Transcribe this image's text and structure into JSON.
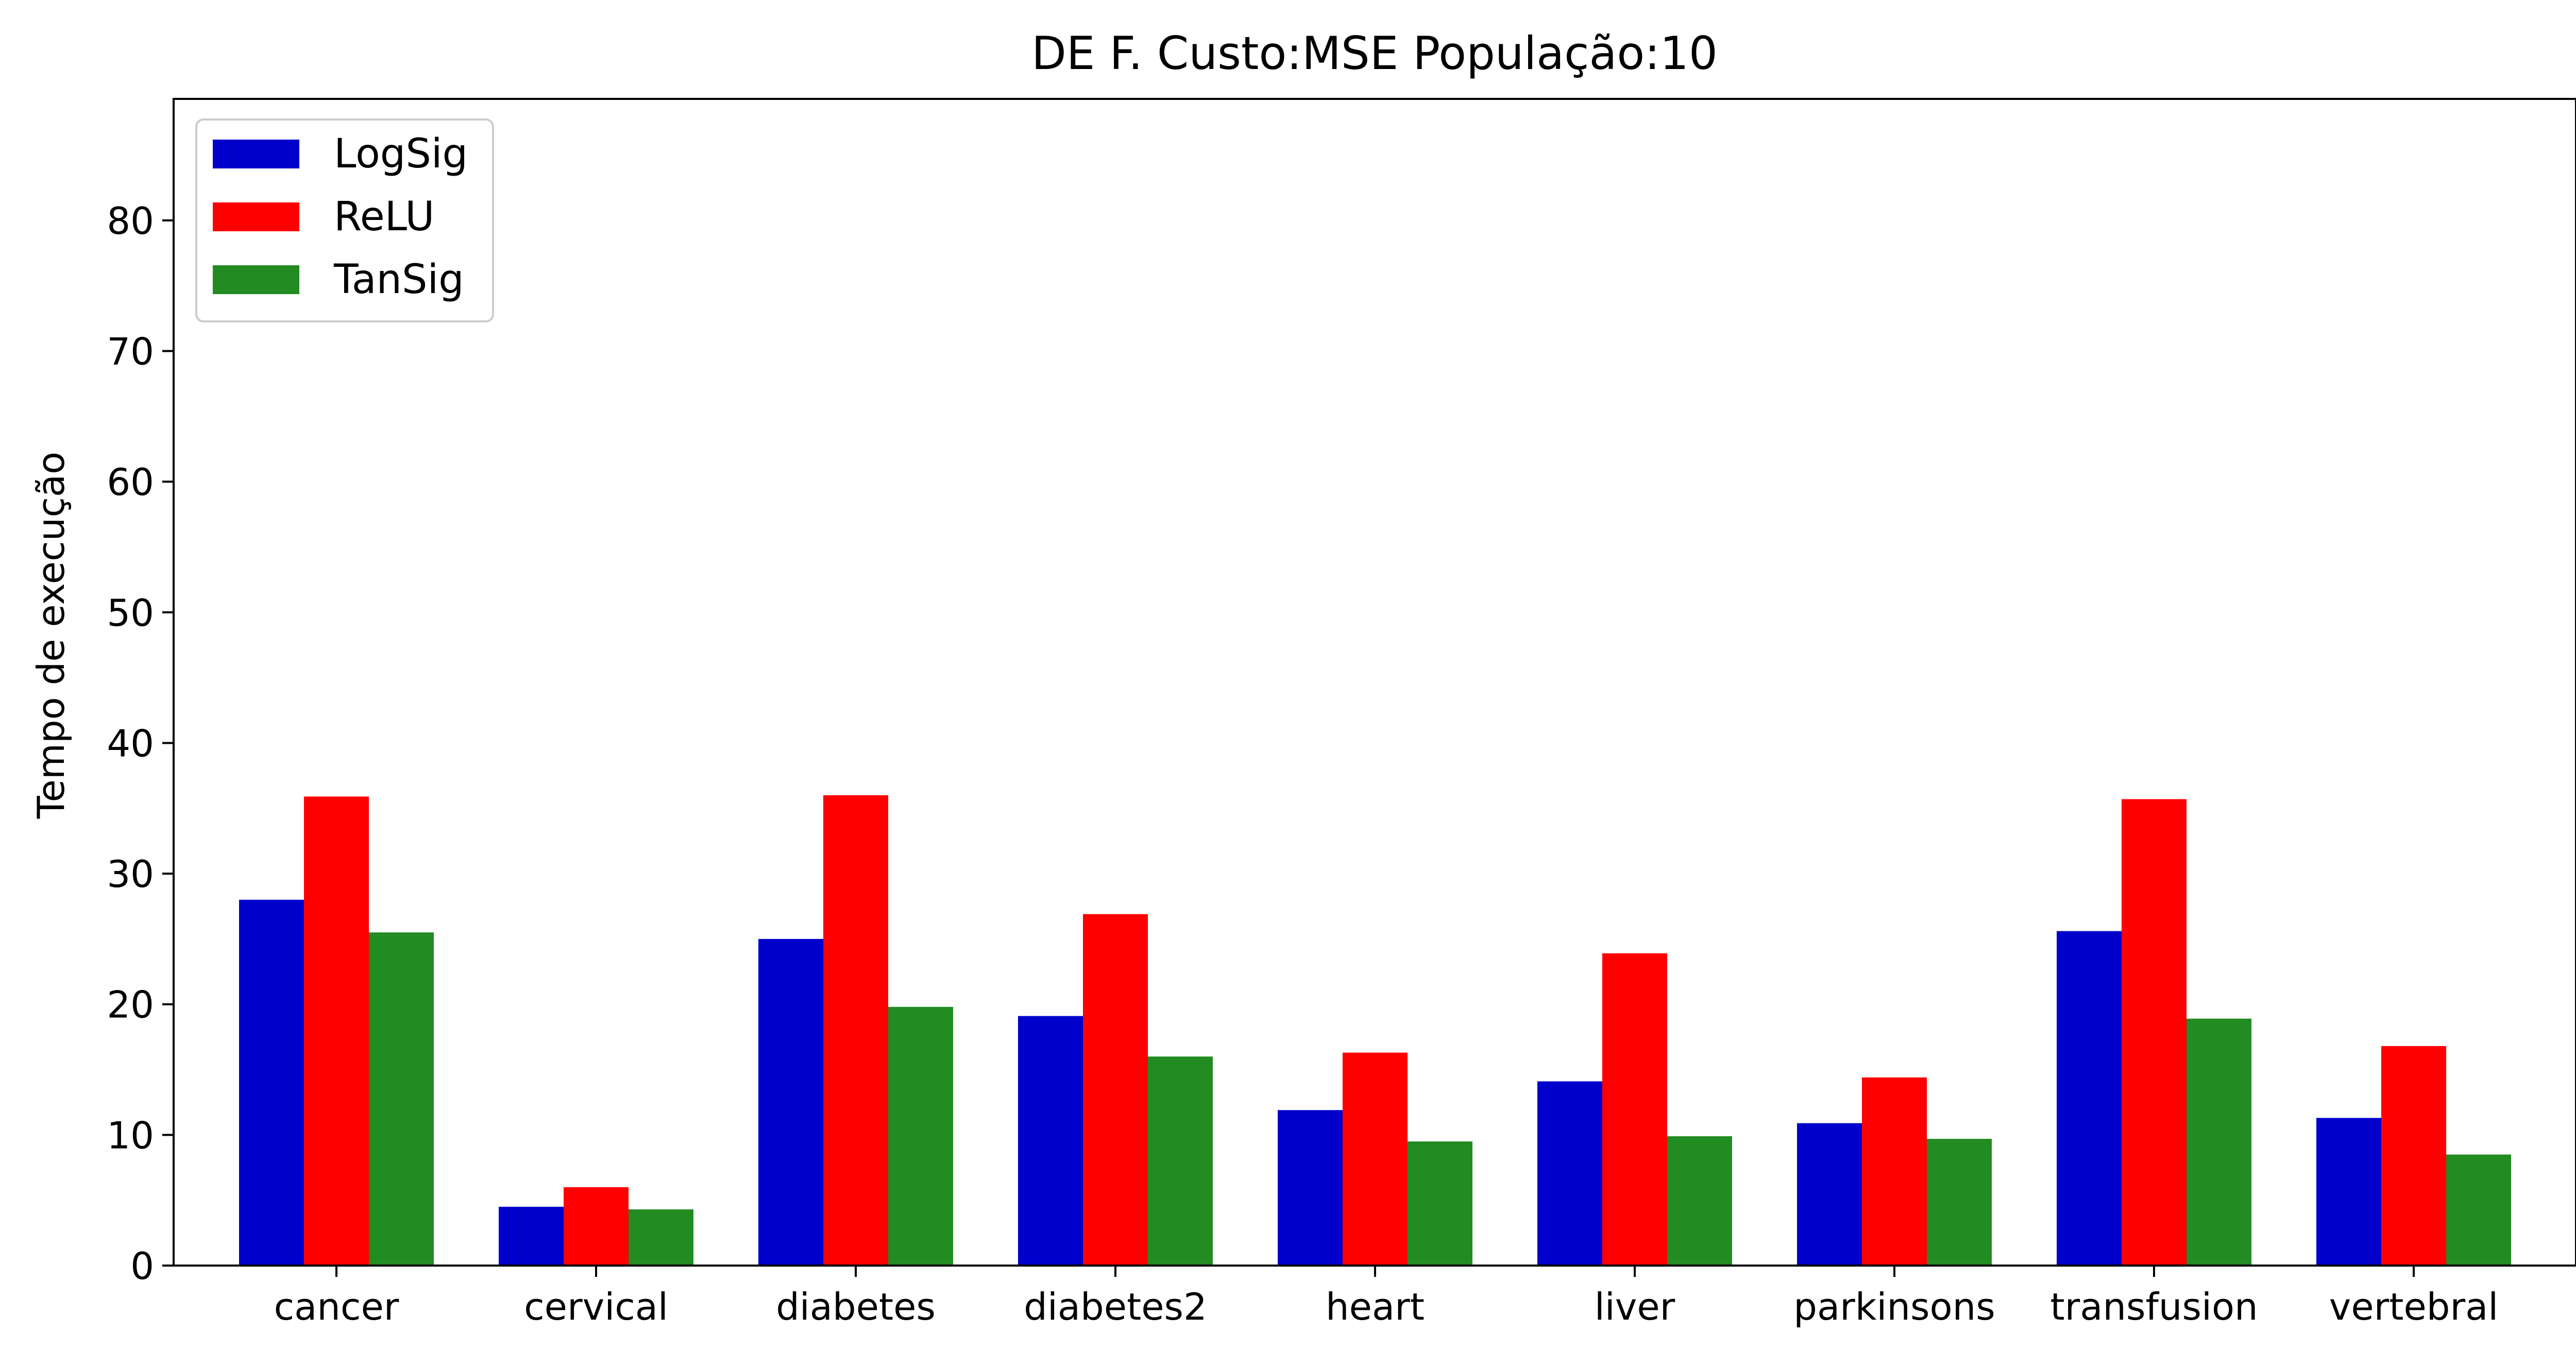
{
  "chart_data": {
    "type": "bar",
    "title": "DE F. Custo:MSE População:10",
    "xlabel": "",
    "ylabel": "Tempo de execução",
    "categories": [
      "cancer",
      "cervical",
      "diabetes",
      "diabetes2",
      "heart",
      "liver",
      "parkinsons",
      "transfusion",
      "vertebral"
    ],
    "series": [
      {
        "name": "LogSig",
        "color": "#0000cc",
        "values": [
          28.0,
          4.5,
          25.0,
          19.1,
          11.9,
          14.1,
          10.9,
          25.6,
          11.3
        ]
      },
      {
        "name": "ReLU",
        "color": "#ff0000",
        "values": [
          35.9,
          6.0,
          36.0,
          26.9,
          16.3,
          23.9,
          14.4,
          35.7,
          16.8
        ]
      },
      {
        "name": "TanSig",
        "color": "#228b22",
        "values": [
          25.5,
          4.3,
          19.8,
          16.0,
          9.5,
          9.9,
          9.7,
          18.9,
          8.5
        ]
      }
    ],
    "ylim": [
      0,
      89.3
    ],
    "yticks": [
      0,
      10,
      20,
      30,
      40,
      50,
      60,
      70,
      80
    ],
    "grid": false,
    "legend_position": "top-left"
  }
}
